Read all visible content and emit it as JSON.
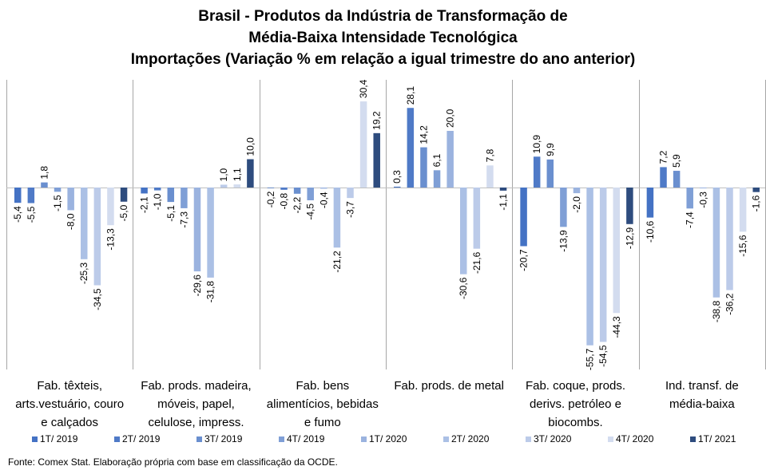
{
  "chart_data": {
    "type": "bar",
    "title_lines": [
      "Brasil - Produtos da Indústria de Transformação de",
      "Média-Baixa Intensidade Tecnológica",
      "Importações (Variação % em relação a igual trimestre do ano anterior)"
    ],
    "categories": [
      [
        "Fab. têxteis,",
        "arts.vestuário, couro",
        "e calçados"
      ],
      [
        "Fab. prods. madeira,",
        "móveis, papel,",
        "celulose, impress."
      ],
      [
        "Fab. bens",
        "alimentícios, bebidas",
        "e fumo"
      ],
      [
        "Fab. prods. de metal"
      ],
      [
        "Fab. coque, prods.",
        "derivs. petróleo e",
        "biocombs."
      ],
      [
        "Ind. transf. de",
        "média-baixa"
      ]
    ],
    "series": [
      {
        "name": "1T/ 2019",
        "color": "#4472c4",
        "values": [
          -5.4,
          -2.1,
          -0.2,
          0.3,
          -20.7,
          -10.6
        ]
      },
      {
        "name": "2T/ 2019",
        "color": "#4f7ac7",
        "values": [
          -5.5,
          -1.0,
          -0.8,
          28.1,
          10.9,
          7.2
        ]
      },
      {
        "name": "3T/ 2019",
        "color": "#6a8fcf",
        "values": [
          1.8,
          -5.1,
          -2.2,
          14.2,
          9.9,
          5.9
        ]
      },
      {
        "name": "4T/ 2019",
        "color": "#7f9fd6",
        "values": [
          -1.5,
          -7.3,
          -4.5,
          6.1,
          -13.9,
          -7.4
        ]
      },
      {
        "name": "1T/ 2020",
        "color": "#9bb3df",
        "values": [
          -8.0,
          -29.6,
          -0.4,
          20.0,
          -2.0,
          -0.3
        ]
      },
      {
        "name": "2T/ 2020",
        "color": "#abc0e5",
        "values": [
          -25.3,
          -31.8,
          -21.2,
          -30.6,
          -55.7,
          -38.8
        ]
      },
      {
        "name": "3T/ 2020",
        "color": "#bccbe9",
        "values": [
          -34.5,
          1.0,
          -3.7,
          -21.6,
          -54.5,
          -36.2
        ]
      },
      {
        "name": "4T/ 2020",
        "color": "#d3dcef",
        "values": [
          -13.3,
          1.1,
          30.4,
          7.8,
          -44.3,
          -15.6
        ]
      },
      {
        "name": "1T/ 2021",
        "color": "#2e4c7e",
        "values": [
          -5.0,
          10.0,
          19.2,
          -1.1,
          -12.9,
          -1.6
        ]
      }
    ],
    "decimal_separator": ",",
    "legend_position": "bottom",
    "grid": false
  },
  "source": "Fonte: Comex Stat. Elaboração própria com base em classificação da OCDE."
}
